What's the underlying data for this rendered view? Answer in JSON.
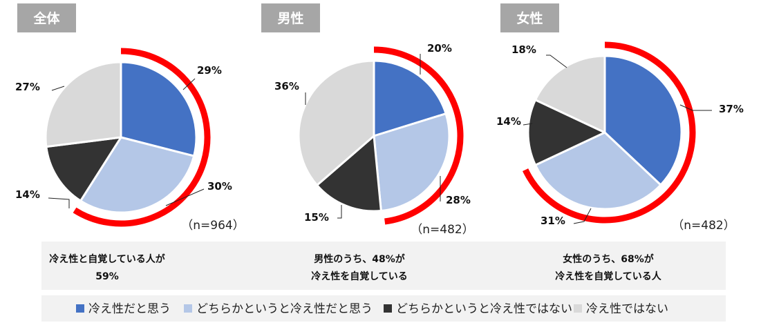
{
  "chart_data": [
    {
      "type": "pie",
      "title": "全体",
      "n_label": "（n=964）",
      "slices": [
        {
          "name": "冷え性だと思う",
          "value": 29,
          "label": "29%"
        },
        {
          "name": "どちらかというと冷え性だと思う",
          "value": 30,
          "label": "30%"
        },
        {
          "name": "どちらかというと冷え性ではない",
          "value": 14,
          "label": "14%"
        },
        {
          "name": "冷え性ではない",
          "value": 27,
          "label": "27%"
        }
      ],
      "highlight_pct": 59,
      "caption": [
        "冷え性と自覚している人が",
        "59%"
      ]
    },
    {
      "type": "pie",
      "title": "男性",
      "n_label": "（n=482）",
      "slices": [
        {
          "name": "冷え性だと思う",
          "value": 20,
          "label": "20%"
        },
        {
          "name": "どちらかというと冷え性だと思う",
          "value": 28,
          "label": "28%"
        },
        {
          "name": "どちらかというと冷え性ではない",
          "value": 15,
          "label": "15%"
        },
        {
          "name": "冷え性ではない",
          "value": 36,
          "label": "36%"
        }
      ],
      "highlight_pct": 48,
      "caption": [
        "男性のうち、48%が",
        "冷え性を自覚している"
      ]
    },
    {
      "type": "pie",
      "title": "女性",
      "n_label": "（n=482）",
      "slices": [
        {
          "name": "冷え性だと思う",
          "value": 37,
          "label": "37%"
        },
        {
          "name": "どちらかというと冷え性だと思う",
          "value": 31,
          "label": "31%"
        },
        {
          "name": "どちらかというと冷え性ではない",
          "value": 14,
          "label": "14%"
        },
        {
          "name": "冷え性ではない",
          "value": 18,
          "label": "18%"
        }
      ],
      "highlight_pct": 68,
      "caption": [
        "女性のうち、68%が",
        "冷え性を自覚している人"
      ]
    }
  ],
  "legend": [
    {
      "label": "冷え性だと思う",
      "color": "#4472c4"
    },
    {
      "label": "どちらかというと冷え性だと思う",
      "color": "#b4c7e7"
    },
    {
      "label": "どちらかというと冷え性ではない",
      "color": "#333333"
    },
    {
      "label": "冷え性ではない",
      "color": "#d9d9d9"
    }
  ],
  "colors": {
    "highlight_arc": "#ff0000",
    "title_tag": "#a6a6a6",
    "caption_band": "#f2f2f2",
    "legend_band": "#f2f2f2"
  }
}
